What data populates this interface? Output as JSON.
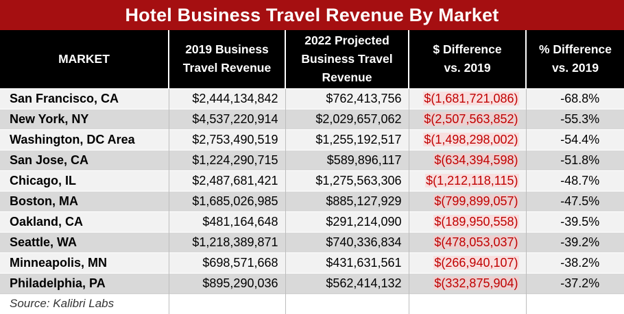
{
  "chart_data": {
    "type": "table",
    "title": "Hotel Business Travel Revenue By Market",
    "columns": [
      "MARKET",
      "2019 Business Travel Revenue",
      "2022 Projected Business Travel Revenue",
      "$ Difference vs. 2019",
      "% Difference vs. 2019"
    ],
    "header_lines": [
      [
        "MARKET"
      ],
      [
        "2019 Business",
        "Travel Revenue"
      ],
      [
        "2022 Projected",
        "Business Travel",
        "Revenue"
      ],
      [
        "$ Difference",
        "vs. 2019"
      ],
      [
        "% Difference",
        "vs. 2019"
      ]
    ],
    "rows": [
      {
        "market": "San Francisco, CA",
        "rev2019": "$2,444,134,842",
        "rev2022": "$762,413,756",
        "diff": "$(1,681,721,086)",
        "pct": "-68.8%"
      },
      {
        "market": "New York, NY",
        "rev2019": "$4,537,220,914",
        "rev2022": "$2,029,657,062",
        "diff": "$(2,507,563,852)",
        "pct": "-55.3%"
      },
      {
        "market": "Washington, DC Area",
        "rev2019": "$2,753,490,519",
        "rev2022": "$1,255,192,517",
        "diff": "$(1,498,298,002)",
        "pct": "-54.4%"
      },
      {
        "market": "San Jose, CA",
        "rev2019": "$1,224,290,715",
        "rev2022": "$589,896,117",
        "diff": "$(634,394,598)",
        "pct": "-51.8%"
      },
      {
        "market": "Chicago, IL",
        "rev2019": "$2,487,681,421",
        "rev2022": "$1,275,563,306",
        "diff": "$(1,212,118,115)",
        "pct": "-48.7%"
      },
      {
        "market": "Boston, MA",
        "rev2019": "$1,685,026,985",
        "rev2022": "$885,127,929",
        "diff": "$(799,899,057)",
        "pct": "-47.5%"
      },
      {
        "market": "Oakland, CA",
        "rev2019": "$481,164,648",
        "rev2022": "$291,214,090",
        "diff": "$(189,950,558)",
        "pct": "-39.5%"
      },
      {
        "market": "Seattle, WA",
        "rev2019": "$1,218,389,871",
        "rev2022": "$740,336,834",
        "diff": "$(478,053,037)",
        "pct": "-39.2%"
      },
      {
        "market": "Minneapolis, MN",
        "rev2019": "$698,571,668",
        "rev2022": "$431,631,561",
        "diff": "$(266,940,107)",
        "pct": "-38.2%"
      },
      {
        "market": "Philadelphia, PA",
        "rev2019": "$895,290,036",
        "rev2022": "$562,414,132",
        "diff": "$(332,875,904)",
        "pct": "-37.2%"
      }
    ],
    "source": "Source: Kalibri Labs"
  },
  "colors": {
    "title_bar": "#a50f11",
    "header_bg": "#000000",
    "negative_text": "#c00000",
    "row_light": "#f2f2f2",
    "row_dark": "#d9d9d9"
  }
}
